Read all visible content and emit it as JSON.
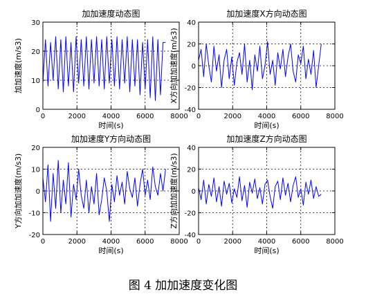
{
  "caption": "图 4  加加速度变化图",
  "style": {
    "line_color": "#0000ff",
    "axis_color": "#000000"
  },
  "chart_data": [
    {
      "type": "line",
      "title": "加加速度动态图",
      "xlabel": "时间(s)",
      "ylabel": "加加速度(m/s3)",
      "xlim": [
        0,
        8000
      ],
      "ylim": [
        0,
        30
      ],
      "xticks": [
        "0",
        "2000",
        "4000",
        "6000",
        "8000"
      ],
      "yticks": [
        "0",
        "10",
        "20",
        "30"
      ],
      "grid": true,
      "series": [
        {
          "x": [
            0,
            150,
            300,
            450,
            600,
            750,
            900,
            1050,
            1200,
            1350,
            1500,
            1650,
            1800,
            1950,
            2100,
            2250,
            2400,
            2550,
            2700,
            2850,
            3000,
            3150,
            3300,
            3450,
            3600,
            3750,
            3900,
            4050,
            4200,
            4350,
            4500,
            4650,
            4800,
            4950,
            5100,
            5250,
            5400,
            5550,
            5700,
            5850,
            6000,
            6150,
            6300,
            6450,
            6600,
            6750,
            6900,
            7050,
            7200
          ],
          "y": [
            9,
            24,
            8,
            23,
            10,
            25,
            7,
            24,
            6,
            25,
            8,
            23,
            6,
            25,
            9,
            24,
            8,
            25,
            7,
            24,
            9,
            25,
            8,
            24,
            7,
            25,
            9,
            24,
            8,
            25,
            7,
            24,
            9,
            25,
            6,
            24,
            8,
            24,
            5,
            23,
            7,
            24,
            4,
            25,
            3,
            24,
            5,
            23,
            23
          ]
        }
      ]
    },
    {
      "type": "line",
      "title": "加加速度X方向动态图",
      "xlabel": "时间(s)",
      "ylabel": "X方向加加速度(m/s3)",
      "xlim": [
        0,
        8000
      ],
      "ylim": [
        -40,
        40
      ],
      "xticks": [
        "0",
        "2000",
        "4000",
        "6000",
        "8000"
      ],
      "yticks": [
        "-40",
        "-20",
        "0",
        "20",
        "40"
      ],
      "grid": true,
      "series": [
        {
          "x": [
            0,
            150,
            300,
            450,
            600,
            750,
            900,
            1050,
            1200,
            1350,
            1500,
            1650,
            1800,
            1950,
            2100,
            2250,
            2400,
            2550,
            2700,
            2850,
            3000,
            3150,
            3300,
            3450,
            3600,
            3750,
            3900,
            4050,
            4200,
            4350,
            4500,
            4650,
            4800,
            4950,
            5100,
            5250,
            5400,
            5550,
            5700,
            5850,
            6000,
            6150,
            6300,
            6450,
            6600,
            6750,
            6900,
            7050,
            7200
          ],
          "y": [
            5,
            15,
            -10,
            20,
            0,
            -15,
            18,
            -5,
            10,
            -20,
            5,
            15,
            -12,
            8,
            -18,
            3,
            12,
            -8,
            20,
            -15,
            5,
            -22,
            10,
            -5,
            18,
            -12,
            0,
            22,
            -8,
            5,
            -18,
            12,
            -3,
            15,
            -10,
            8,
            20,
            -5,
            -15,
            10,
            2,
            18,
            -12,
            6,
            -8,
            14,
            -20,
            0,
            20
          ]
        }
      ]
    },
    {
      "type": "line",
      "title": "加加速度Y方向动态图",
      "xlabel": "时间(s)",
      "ylabel": "Y方向加加速度(m/s3)",
      "xlim": [
        0,
        8000
      ],
      "ylim": [
        -20,
        20
      ],
      "xticks": [
        "0",
        "2000",
        "4000",
        "6000",
        "8000"
      ],
      "yticks": [
        "-20",
        "-10",
        "0",
        "10",
        "20"
      ],
      "grid": true,
      "series": [
        {
          "x": [
            0,
            150,
            300,
            450,
            600,
            750,
            900,
            1050,
            1200,
            1350,
            1500,
            1650,
            1800,
            1950,
            2100,
            2250,
            2400,
            2550,
            2700,
            2850,
            3000,
            3150,
            3300,
            3450,
            3600,
            3750,
            3900,
            4050,
            4200,
            4350,
            4500,
            4650,
            4800,
            4950,
            5100,
            5250,
            5400,
            5550,
            5700,
            5850,
            6000,
            6150,
            6300,
            6450,
            6600,
            6750,
            6900,
            7050,
            7200
          ],
          "y": [
            6,
            -5,
            12,
            -14,
            8,
            -8,
            14,
            -10,
            5,
            -6,
            13,
            -12,
            3,
            -4,
            10,
            -2,
            -8,
            5,
            -10,
            2,
            -6,
            8,
            -11,
            -4,
            6,
            0,
            -14,
            3,
            -5,
            7,
            -2,
            4,
            -6,
            9,
            1,
            -3,
            6,
            -7,
            3,
            10,
            -2,
            5,
            -4,
            11,
            2,
            -2,
            8,
            0,
            10
          ]
        }
      ]
    },
    {
      "type": "line",
      "title": "加加速度Z方向动态图",
      "xlabel": "时间(s)",
      "ylabel": "Z方向加加速度(m/s3)",
      "xlim": [
        0,
        8000
      ],
      "ylim": [
        -40,
        40
      ],
      "xticks": [
        "0",
        "2000",
        "4000",
        "6000",
        "8000"
      ],
      "yticks": [
        "-40",
        "-20",
        "0",
        "20",
        "40"
      ],
      "grid": true,
      "series": [
        {
          "x": [
            0,
            150,
            300,
            450,
            600,
            750,
            900,
            1050,
            1200,
            1350,
            1500,
            1650,
            1800,
            1950,
            2100,
            2250,
            2400,
            2550,
            2700,
            2850,
            3000,
            3150,
            3300,
            3450,
            3600,
            3750,
            3900,
            4050,
            4200,
            4350,
            4500,
            4650,
            4800,
            4950,
            5100,
            5250,
            5400,
            5550,
            5700,
            5850,
            6000,
            6150,
            6300,
            6450,
            6600,
            6750,
            6900,
            7050,
            7200
          ],
          "y": [
            3,
            -8,
            10,
            -12,
            6,
            -5,
            12,
            -10,
            4,
            -14,
            9,
            -3,
            7,
            -11,
            2,
            -6,
            13,
            -9,
            5,
            -15,
            8,
            -2,
            11,
            -7,
            3,
            -12,
            6,
            10,
            -5,
            -16,
            4,
            9,
            -8,
            12,
            -4,
            7,
            -10,
            5,
            13,
            -6,
            2,
            -13,
            8,
            -3,
            10,
            -7,
            4,
            -5,
            -3
          ]
        }
      ]
    }
  ]
}
